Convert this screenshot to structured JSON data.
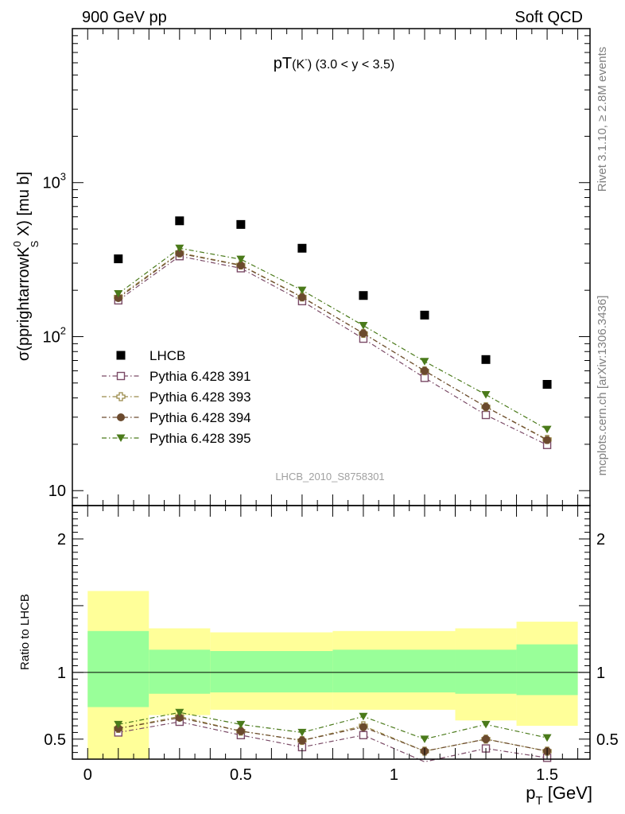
{
  "header": {
    "left": "900 GeV pp",
    "right": "Soft QCD"
  },
  "side_labels": {
    "rivet": "Rivet 3.1.10, ≥ 2.8M events",
    "mcplots": "mcplots.cern.ch [arXiv:1306.3436]"
  },
  "analysis_id": "LHCB_2010_S8758301",
  "colors": {
    "lhcb": "#000000",
    "pythia_391": "#7a4a66",
    "pythia_393": "#9a8a4a",
    "pythia_394": "#6b4a2e",
    "pythia_395": "#4a7a1a",
    "band_inner": "#99ff99",
    "band_outer": "#ffff99"
  },
  "chart_data": [
    {
      "type": "scatter",
      "title_main": "pT",
      "title_sub": "(K",
      "title_sup": "-",
      "title_tail": ")  (3.0 < y < 3.5)",
      "ylabel": "σ(pprightarrowK",
      "ylabel_sup": "0",
      "ylabel_sub": "S",
      "ylabel_tail": " X) [mu b]",
      "yscale": "log",
      "xlim": [
        -0.05,
        1.64
      ],
      "ylim": [
        8,
        10000
      ],
      "y_ticks": [
        {
          "value": 10,
          "label": "10"
        },
        {
          "value": 100,
          "label": "10",
          "exp": "2"
        },
        {
          "value": 1000,
          "label": "10",
          "exp": "3"
        }
      ],
      "x": [
        0.1,
        0.3,
        0.5,
        0.7,
        0.9,
        1.1,
        1.3,
        1.5
      ],
      "series": [
        {
          "name": "LHCB",
          "marker": "square",
          "color": "#000000",
          "values": [
            320,
            565,
            535,
            375,
            185,
            138,
            71,
            49
          ]
        },
        {
          "name": "Pythia 6.428 391",
          "marker": "open-square",
          "color": "#7a4a66",
          "values": [
            172,
            333,
            278,
            170,
            97,
            54,
            31,
            19.8
          ]
        },
        {
          "name": "Pythia 6.428 393",
          "marker": "open-cross",
          "color": "#9a8a4a",
          "values": [
            181,
            350,
            292,
            181,
            105,
            60,
            35,
            21.5
          ]
        },
        {
          "name": "Pythia 6.428 394",
          "marker": "circle",
          "color": "#6b4a2e",
          "values": [
            178,
            347,
            290,
            180,
            105,
            60,
            35,
            21.3
          ]
        },
        {
          "name": "Pythia 6.428 395",
          "marker": "triangle-down",
          "color": "#4a7a1a",
          "values": [
            190,
            375,
            318,
            200,
            118,
            69,
            42,
            25
          ]
        }
      ],
      "legend_position": "lower-left"
    },
    {
      "type": "scatter",
      "ylabel": "Ratio to LHCB",
      "xlabel": "p",
      "xlabel_sub": "T",
      "xlabel_tail": " [GeV]",
      "xlim": [
        -0.05,
        1.64
      ],
      "ylim": [
        0.35,
        2.25
      ],
      "x_ticks": [
        {
          "value": 0,
          "label": "0"
        },
        {
          "value": 0.5,
          "label": "0.5"
        },
        {
          "value": 1,
          "label": "1"
        },
        {
          "value": 1.5,
          "label": "1.5"
        }
      ],
      "y_ticks": [
        {
          "value": 0.5,
          "label": "0.5"
        },
        {
          "value": 1,
          "label": "1"
        },
        {
          "value": 2,
          "label": "2"
        }
      ],
      "bins": [
        {
          "lo": 0.0,
          "hi": 0.2,
          "inner": [
            0.74,
            1.31
          ],
          "outer": [
            0.35,
            1.61
          ]
        },
        {
          "lo": 0.2,
          "hi": 0.4,
          "inner": [
            0.84,
            1.17
          ],
          "outer": [
            0.68,
            1.33
          ]
        },
        {
          "lo": 0.4,
          "hi": 0.8,
          "inner": [
            0.85,
            1.16
          ],
          "outer": [
            0.72,
            1.3
          ]
        },
        {
          "lo": 0.8,
          "hi": 1.2,
          "inner": [
            0.85,
            1.17
          ],
          "outer": [
            0.72,
            1.31
          ]
        },
        {
          "lo": 1.2,
          "hi": 1.4,
          "inner": [
            0.84,
            1.17
          ],
          "outer": [
            0.64,
            1.33
          ]
        },
        {
          "lo": 1.4,
          "hi": 1.6,
          "inner": [
            0.83,
            1.21
          ],
          "outer": [
            0.6,
            1.38
          ]
        }
      ],
      "x": [
        0.1,
        0.3,
        0.5,
        0.7,
        0.9,
        1.1,
        1.3,
        1.5
      ],
      "series": [
        {
          "name": "Pythia 6.428 391",
          "marker": "open-square",
          "color": "#7a4a66",
          "values": [
            0.55,
            0.63,
            0.53,
            0.44,
            0.53,
            0.33,
            0.43,
            0.36
          ]
        },
        {
          "name": "Pythia 6.428 393",
          "marker": "open-cross",
          "color": "#9a8a4a",
          "values": [
            0.58,
            0.67,
            0.56,
            0.49,
            0.6,
            0.41,
            0.5,
            0.41
          ]
        },
        {
          "name": "Pythia 6.428 394",
          "marker": "circle",
          "color": "#6b4a2e",
          "values": [
            0.58,
            0.66,
            0.56,
            0.49,
            0.59,
            0.41,
            0.5,
            0.41
          ]
        },
        {
          "name": "Pythia 6.428 395",
          "marker": "triangle-down",
          "color": "#4a7a1a",
          "values": [
            0.61,
            0.7,
            0.61,
            0.55,
            0.67,
            0.5,
            0.61,
            0.51
          ]
        }
      ]
    }
  ]
}
